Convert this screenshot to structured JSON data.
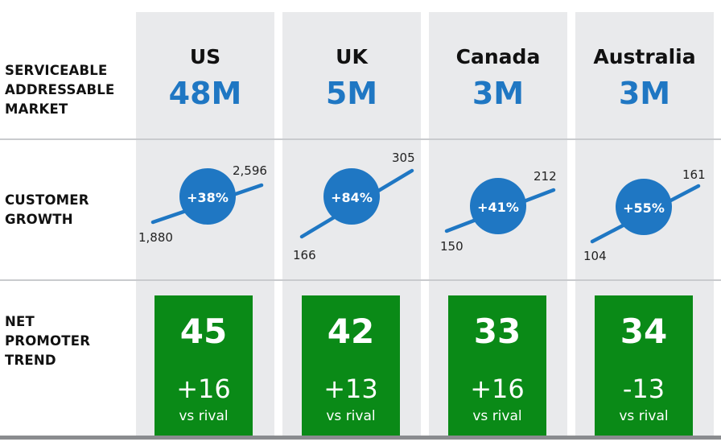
{
  "rows": {
    "sam_label": [
      "SERVICEABLE",
      "ADDRESSABLE",
      "MARKET"
    ],
    "growth_label": [
      "CUSTOMER",
      "GROWTH"
    ],
    "nps_label": [
      "NET",
      "PROMOTER",
      "TREND"
    ]
  },
  "countries": [
    {
      "name": "US",
      "sam": "48M",
      "growth_start": "1,880",
      "growth_end": "2,596",
      "growth_pct": "+38%",
      "nps": "45",
      "nps_delta": "+16",
      "nps_vs": "vs rival"
    },
    {
      "name": "UK",
      "sam": "5M",
      "growth_start": "166",
      "growth_end": "305",
      "growth_pct": "+84%",
      "nps": "42",
      "nps_delta": "+13",
      "nps_vs": "vs rival"
    },
    {
      "name": "Canada",
      "sam": "3M",
      "growth_start": "150",
      "growth_end": "212",
      "growth_pct": "+41%",
      "nps": "33",
      "nps_delta": "+16",
      "nps_vs": "vs rival"
    },
    {
      "name": "Australia",
      "sam": "3M",
      "growth_start": "104",
      "growth_end": "161",
      "growth_pct": "+55%",
      "nps": "34",
      "nps_delta": "-13",
      "nps_vs": "vs rival"
    }
  ],
  "colors": {
    "accent_blue": "#1f77c3",
    "nps_green": "#0a8a17",
    "column_bg": "#e9eaec"
  }
}
